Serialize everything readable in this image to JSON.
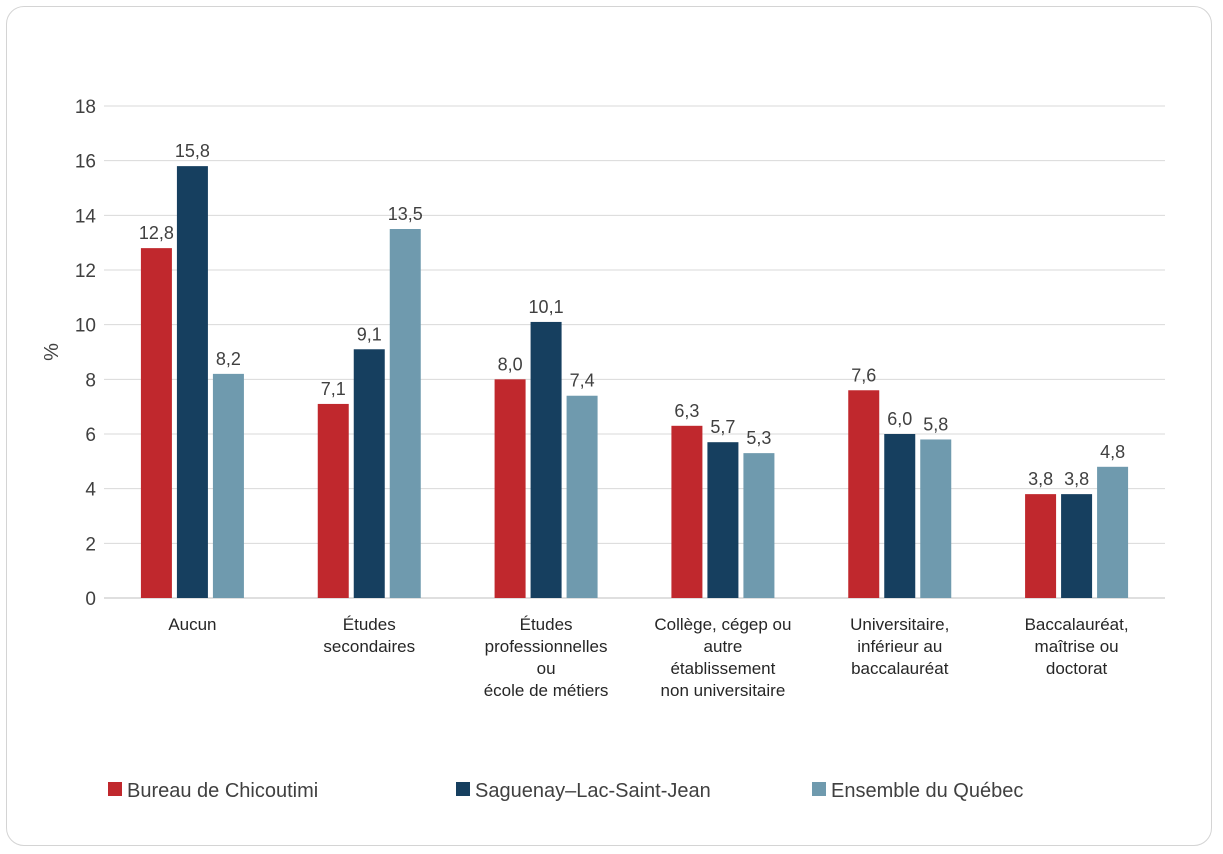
{
  "chart_data": {
    "type": "bar",
    "ylabel": "%",
    "ylim": [
      0,
      18
    ],
    "yticks": [
      0,
      2,
      4,
      6,
      8,
      10,
      12,
      14,
      16,
      18
    ],
    "grid": true,
    "legend_position": "bottom",
    "categories": [
      [
        "Aucun"
      ],
      [
        "Études",
        "secondaires"
      ],
      [
        "Études",
        "professionnelles",
        "ou",
        "école de métiers"
      ],
      [
        "Collège, cégep ou",
        "autre",
        "établissement",
        "non universitaire"
      ],
      [
        "Universitaire,",
        "inférieur au",
        "baccalauréat"
      ],
      [
        "Baccalauréat,",
        "maîtrise ou",
        "doctorat"
      ]
    ],
    "series": [
      {
        "name": "Bureau de Chicoutimi",
        "color": "#c0282d",
        "values": [
          12.8,
          7.1,
          8.0,
          6.3,
          7.6,
          3.8
        ],
        "labels": [
          "12,8",
          "7,1",
          "8,0",
          "6,3",
          "7,6",
          "3,8"
        ]
      },
      {
        "name": "Saguenay–Lac-Saint-Jean",
        "color": "#163f5f",
        "values": [
          15.8,
          9.1,
          10.1,
          5.7,
          6.0,
          3.8
        ],
        "labels": [
          "15,8",
          "9,1",
          "10,1",
          "5,7",
          "6,0",
          "3,8"
        ]
      },
      {
        "name": "Ensemble du Québec",
        "color": "#6f9aae",
        "values": [
          8.2,
          13.5,
          7.4,
          5.3,
          5.8,
          4.8
        ],
        "labels": [
          "8,2",
          "13,5",
          "7,4",
          "5,3",
          "5,8",
          "4,8"
        ]
      }
    ]
  }
}
